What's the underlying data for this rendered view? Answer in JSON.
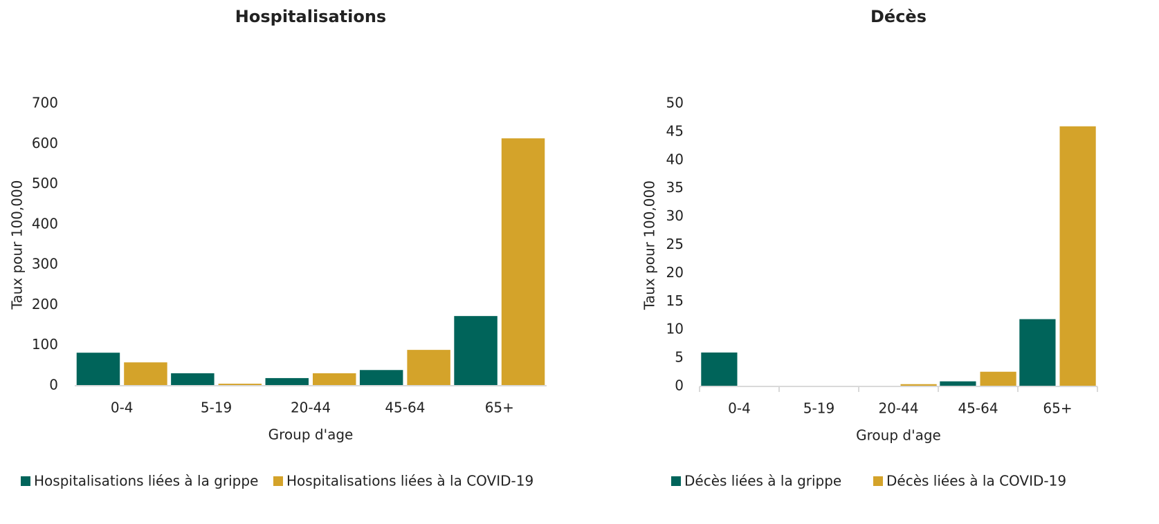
{
  "chart_data": [
    {
      "type": "bar",
      "title": "Hospitalisations",
      "x_label": "Group d'age",
      "y_label": "Taux pour 100,000",
      "categories": [
        "0-4",
        "5-19",
        "20-44",
        "45-64",
        "65+"
      ],
      "series": [
        {
          "name": "Hospitalisations liées à la grippe",
          "color": "#00645a",
          "values": [
            82,
            31,
            19,
            39,
            173
          ]
        },
        {
          "name": "Hospitalisations liées à la COVID-19",
          "color": "#d4a32a",
          "values": [
            58,
            5,
            31,
            89,
            614
          ]
        }
      ],
      "ylim": [
        0,
        700
      ],
      "yticks": [
        0,
        100,
        200,
        300,
        400,
        500,
        600,
        700
      ]
    },
    {
      "type": "bar",
      "title": "Décès",
      "x_label": "Group d'age",
      "y_label": "Taux pour 100,000",
      "categories": [
        "0-4",
        "5-19",
        "20-44",
        "45-64",
        "65+"
      ],
      "series": [
        {
          "name": "Décès liées à la grippe",
          "color": "#00645a",
          "values": [
            6,
            0,
            0,
            0.9,
            11.9
          ]
        },
        {
          "name": "Décès liées à la COVID-19",
          "color": "#d4a32a",
          "values": [
            0,
            0,
            0.4,
            2.6,
            46
          ]
        }
      ],
      "ylim": [
        0,
        50
      ],
      "yticks": [
        0,
        5,
        10,
        15,
        20,
        25,
        30,
        35,
        40,
        45,
        50
      ]
    }
  ]
}
